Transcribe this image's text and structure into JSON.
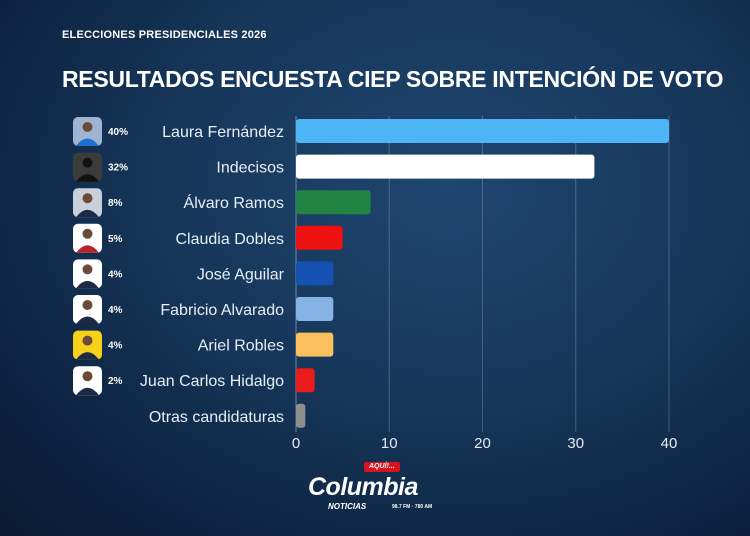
{
  "header": {
    "kicker": "ELECCIONES PRESIDENCIALES 2026",
    "title": "RESULTADOS ENCUESTA CIEP SOBRE INTENCIÓN DE VOTO"
  },
  "chart_data": {
    "type": "bar",
    "orientation": "horizontal",
    "categories": [
      "Laura Fernández",
      "Indecisos",
      "Álvaro Ramos",
      "Claudia Dobles",
      "José Aguilar",
      "Fabricio Alvarado",
      "Ariel Robles",
      "Juan Carlos Hidalgo",
      "Otras candidaturas"
    ],
    "values": [
      40,
      32,
      8,
      5,
      4,
      4,
      4,
      2,
      1
    ],
    "data_labels": [
      "40%",
      "32%",
      "8%",
      "5%",
      "4%",
      "4%",
      "4%",
      "2%",
      ""
    ],
    "colors": [
      "#4db5f5",
      "#ffffff",
      "#218443",
      "#ee1111",
      "#1550b3",
      "#86b2e6",
      "#fbc05e",
      "#e81c1c",
      "#8e8e8e"
    ],
    "avatar_bg": [
      "#9fb4d0",
      "#3b3b3b",
      "#c9d0dc",
      "#ffffff",
      "#ffffff",
      "#ffffff",
      "#f7d21a",
      "#ffffff",
      ""
    ],
    "xlim": [
      0,
      42
    ],
    "xticks": [
      0,
      10,
      20,
      30,
      40
    ],
    "grid": true
  },
  "logo": {
    "badge": "AQUÍ!...",
    "name": "Columbia",
    "sub": "NOTICIAS",
    "freq": "98.7 FM · 780 AM"
  }
}
